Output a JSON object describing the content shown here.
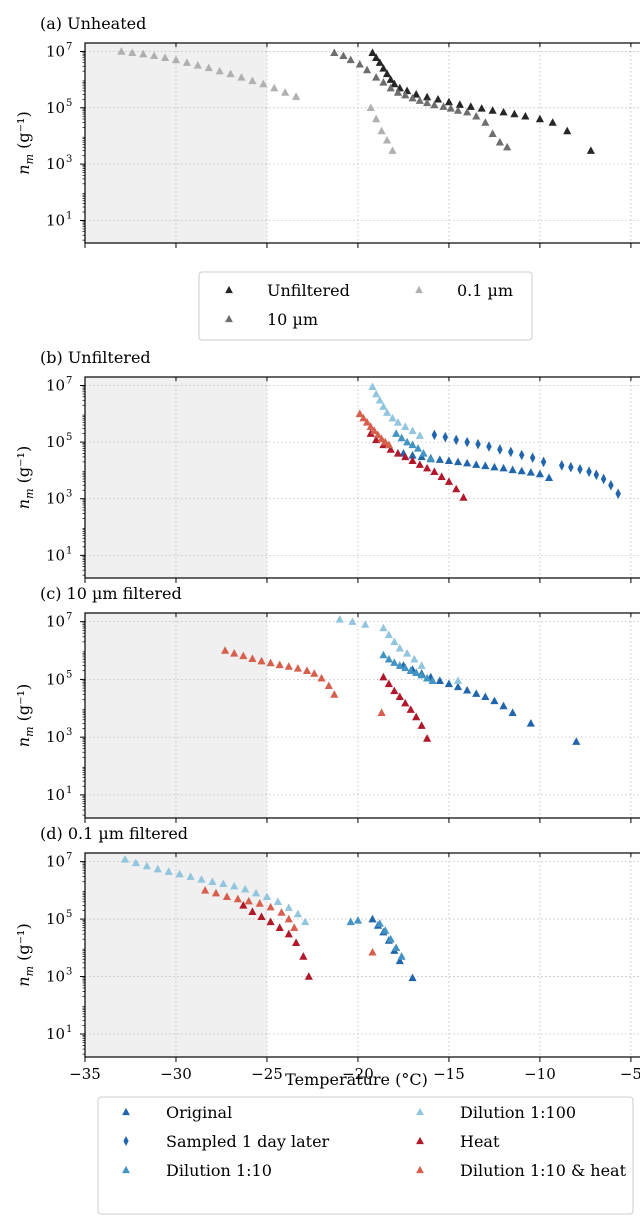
{
  "figure": {
    "xlabel": "Temperature (°C)",
    "ylabel_base": "n",
    "ylabel_sub": "m",
    "ylabel_unit": "(g⁻¹)",
    "xlim": [
      -35,
      -4.5
    ],
    "ylim_log10": [
      0.2,
      7.3
    ],
    "shaded_region": [
      -35,
      -25
    ],
    "grid": true,
    "xticks": [
      -35,
      -30,
      -25,
      -20,
      -15,
      -10,
      -5
    ],
    "xtick_labels": [
      "−35",
      "−30",
      "−25",
      "−20",
      "−15",
      "−10",
      "−5"
    ],
    "yticks_log10": [
      1,
      3,
      5,
      7
    ],
    "ytick_labels": [
      "10",
      "10",
      "10",
      "10"
    ],
    "ytick_exponents": [
      "1",
      "3",
      "5",
      "7"
    ]
  },
  "legend_top": {
    "placement": "between panels a and b",
    "entries": [
      {
        "label": "Unfiltered",
        "color": "#262626",
        "marker": "triangle"
      },
      {
        "label": "10 µm",
        "color": "#6e6e6e",
        "marker": "triangle"
      },
      {
        "label": "0.1 µm",
        "color": "#b0b0b0",
        "marker": "triangle"
      }
    ]
  },
  "legend_bottom": {
    "placement": "bottom",
    "entries": [
      {
        "label": "Original",
        "color": "#2166ac",
        "marker": "triangle"
      },
      {
        "label": "Sampled 1 day later",
        "color": "#2166ac",
        "marker": "diamond"
      },
      {
        "label": "Dilution 1:10",
        "color": "#4393c3",
        "marker": "triangle"
      },
      {
        "label": "Dilution 1:100",
        "color": "#92c5de",
        "marker": "triangle"
      },
      {
        "label": "Heat",
        "color": "#b2182b",
        "marker": "triangle"
      },
      {
        "label": "Dilution 1:10 & heat",
        "color": "#d6604d",
        "marker": "triangle"
      }
    ]
  },
  "chart_data": [
    {
      "type": "scatter",
      "title": "(a) Unheated",
      "x_unit": "°C",
      "series": [
        {
          "name": "Unfiltered",
          "color": "#262626",
          "marker": "triangle",
          "x": [
            -19.2,
            -19.0,
            -18.8,
            -18.6,
            -18.4,
            -18.2,
            -18.0,
            -17.7,
            -17.3,
            -16.8,
            -16.2,
            -15.6,
            -15.0,
            -14.4,
            -13.8,
            -13.2,
            -12.6,
            -12.0,
            -11.4,
            -10.8,
            -10.0,
            -9.3,
            -8.5,
            -7.2
          ],
          "y": [
            9000000,
            6000000,
            4000000,
            2500000,
            1600000,
            1000000,
            700000,
            500000,
            400000,
            300000,
            240000,
            200000,
            160000,
            130000,
            110000,
            95000,
            80000,
            70000,
            60000,
            50000,
            40000,
            30000,
            15000,
            3000
          ]
        },
        {
          "name": "10 µm",
          "color": "#6e6e6e",
          "marker": "triangle",
          "x": [
            -21.3,
            -20.8,
            -20.4,
            -19.9,
            -19.5,
            -19.0,
            -18.6,
            -18.2,
            -17.8,
            -17.4,
            -17.0,
            -16.6,
            -16.2,
            -15.8,
            -15.3,
            -14.9,
            -14.5,
            -14.0,
            -13.5,
            -13.0,
            -12.6,
            -12.2,
            -11.8
          ],
          "y": [
            9000000,
            7000000,
            5000000,
            3500000,
            2200000,
            1200000,
            800000,
            500000,
            350000,
            280000,
            220000,
            180000,
            150000,
            125000,
            110000,
            95000,
            80000,
            70000,
            50000,
            30000,
            12000,
            6000,
            4000
          ]
        },
        {
          "name": "0.1 µm",
          "color": "#b0b0b0",
          "marker": "triangle",
          "x": [
            -33.0,
            -32.4,
            -31.8,
            -31.2,
            -30.6,
            -30.0,
            -29.4,
            -28.8,
            -28.2,
            -27.6,
            -27.0,
            -26.4,
            -25.8,
            -25.2,
            -24.6,
            -24.0,
            -23.4,
            -19.3,
            -19.0,
            -18.7,
            -18.4,
            -18.1
          ],
          "y": [
            10000000,
            9000000,
            8000000,
            7000000,
            6000000,
            5000000,
            4000000,
            3200000,
            2600000,
            2000000,
            1600000,
            1200000,
            900000,
            700000,
            500000,
            350000,
            250000,
            100000,
            40000,
            15000,
            7000,
            3000
          ]
        }
      ]
    },
    {
      "type": "scatter",
      "title": "(b) Unfiltered",
      "x_unit": "°C",
      "series": [
        {
          "name": "Original",
          "color": "#2166ac",
          "marker": "triangle",
          "x": [
            -17.5,
            -17.0,
            -16.5,
            -16.0,
            -15.5,
            -15.0,
            -14.5,
            -14.0,
            -13.5,
            -13.0,
            -12.5,
            -12.0,
            -11.5,
            -11.0,
            -10.5,
            -10.0,
            -9.5
          ],
          "y": [
            40000,
            34000,
            30000,
            27000,
            24000,
            22000,
            20000,
            18000,
            16000,
            14500,
            13000,
            12000,
            10500,
            9500,
            8500,
            7500,
            5500
          ]
        },
        {
          "name": "Sampled 1 day later",
          "color": "#2166ac",
          "marker": "diamond",
          "x": [
            -15.8,
            -15.2,
            -14.6,
            -14.0,
            -13.4,
            -12.8,
            -12.2,
            -11.6,
            -11.0,
            -10.4,
            -9.8,
            -8.8,
            -8.3,
            -7.8,
            -7.3,
            -6.9,
            -6.5,
            -6.1,
            -5.7
          ],
          "y": [
            180000,
            150000,
            120000,
            100000,
            85000,
            70000,
            55000,
            45000,
            35000,
            28000,
            20000,
            15000,
            13000,
            11000,
            9000,
            7000,
            5000,
            3000,
            1500
          ]
        },
        {
          "name": "Dilution 1:10",
          "color": "#4393c3",
          "marker": "triangle",
          "x": [
            -17.9,
            -17.6,
            -17.3,
            -17.0,
            -16.7,
            -16.4,
            -16.0
          ],
          "y": [
            200000,
            140000,
            100000,
            80000,
            60000,
            40000,
            25000
          ]
        },
        {
          "name": "Dilution 1:100",
          "color": "#92c5de",
          "marker": "triangle",
          "x": [
            -19.2,
            -19.0,
            -18.8,
            -18.6,
            -18.4,
            -18.1,
            -17.8,
            -17.4,
            -17.0,
            -16.6
          ],
          "y": [
            9000000,
            5000000,
            3000000,
            1800000,
            1100000,
            700000,
            500000,
            350000,
            250000,
            170000
          ]
        },
        {
          "name": "Heat",
          "color": "#b2182b",
          "marker": "triangle",
          "x": [
            -19.3,
            -19.0,
            -18.6,
            -18.2,
            -17.8,
            -17.4,
            -17.0,
            -16.6,
            -16.2,
            -15.8,
            -15.4,
            -15.0,
            -14.6,
            -14.2
          ],
          "y": [
            200000,
            120000,
            80000,
            55000,
            40000,
            30000,
            22000,
            16000,
            12000,
            9000,
            6000,
            4000,
            2200,
            1100
          ]
        },
        {
          "name": "Dilution 1:10 & heat",
          "color": "#d6604d",
          "marker": "triangle",
          "x": [
            -19.9,
            -19.7,
            -19.5,
            -19.3,
            -19.1,
            -18.9,
            -18.7,
            -18.5,
            -18.3
          ],
          "y": [
            1000000,
            700000,
            500000,
            350000,
            250000,
            180000,
            130000,
            100000,
            80000
          ]
        }
      ]
    },
    {
      "type": "scatter",
      "title": "(c) 10 µm filtered",
      "x_unit": "°C",
      "series": [
        {
          "name": "Original",
          "color": "#2166ac",
          "marker": "triangle",
          "x": [
            -17.5,
            -17.0,
            -16.5,
            -16.0,
            -15.5,
            -15.0,
            -14.5,
            -14.0,
            -13.5,
            -13.0,
            -12.5,
            -12.0,
            -11.5,
            -10.5,
            -8.0
          ],
          "y": [
            300000,
            220000,
            160000,
            120000,
            90000,
            70000,
            55000,
            42000,
            32000,
            25000,
            18000,
            12000,
            7000,
            3000,
            700
          ]
        },
        {
          "name": "Dilution 1:10",
          "color": "#4393c3",
          "marker": "triangle",
          "x": [
            -18.6,
            -18.3,
            -18.0,
            -17.7,
            -17.4,
            -17.1,
            -16.8,
            -16.5,
            -16.2,
            -15.9
          ],
          "y": [
            700000,
            500000,
            380000,
            300000,
            250000,
            200000,
            170000,
            140000,
            110000,
            90000
          ]
        },
        {
          "name": "Dilution 1:100",
          "color": "#92c5de",
          "marker": "triangle",
          "x": [
            -21.0,
            -20.3,
            -19.6,
            -18.6,
            -18.3,
            -18.0,
            -17.7,
            -17.3,
            -16.9,
            -16.5,
            -14.5
          ],
          "y": [
            12000000,
            10000000,
            8000000,
            6000000,
            3500000,
            2000000,
            1200000,
            800000,
            500000,
            300000,
            90000
          ]
        },
        {
          "name": "Heat",
          "color": "#b2182b",
          "marker": "triangle",
          "x": [
            -18.6,
            -18.3,
            -18.0,
            -17.7,
            -17.4,
            -17.1,
            -16.8,
            -16.5,
            -16.2
          ],
          "y": [
            120000,
            70000,
            40000,
            25000,
            15000,
            9000,
            5000,
            2500,
            900
          ]
        },
        {
          "name": "Dilution 1:10 & heat",
          "color": "#d6604d",
          "marker": "triangle",
          "x": [
            -27.3,
            -26.8,
            -26.3,
            -25.8,
            -25.3,
            -24.8,
            -24.3,
            -23.8,
            -23.3,
            -22.8,
            -22.4,
            -22.0,
            -21.6,
            -21.3,
            -18.7
          ],
          "y": [
            1000000,
            800000,
            650000,
            520000,
            430000,
            370000,
            320000,
            280000,
            240000,
            200000,
            160000,
            110000,
            60000,
            30000,
            7000
          ]
        }
      ]
    },
    {
      "type": "scatter",
      "title": "(d) 0.1 µm filtered",
      "x_unit": "°C",
      "series": [
        {
          "name": "Original",
          "color": "#2166ac",
          "marker": "triangle",
          "x": [
            -19.2,
            -18.9,
            -18.6,
            -18.3,
            -18.0,
            -17.7,
            -17.0
          ],
          "y": [
            100000,
            60000,
            35000,
            18000,
            8000,
            3500,
            900
          ]
        },
        {
          "name": "Dilution 1:10",
          "color": "#4393c3",
          "marker": "triangle",
          "x": [
            -18.8,
            -18.5,
            -18.2,
            -17.9,
            -17.6,
            -20.4,
            -20.0
          ],
          "y": [
            70000,
            40000,
            20000,
            10000,
            5000,
            80000,
            90000
          ]
        },
        {
          "name": "Dilution 1:100",
          "color": "#92c5de",
          "marker": "triangle",
          "x": [
            -32.8,
            -32.2,
            -31.6,
            -31.0,
            -30.4,
            -29.8,
            -29.2,
            -28.6,
            -28.0,
            -27.4,
            -26.8,
            -26.2,
            -25.6,
            -25.0,
            -24.4,
            -23.8,
            -23.3,
            -22.9
          ],
          "y": [
            12000000,
            9000000,
            7000000,
            5500000,
            4500000,
            3700000,
            3000000,
            2400000,
            2000000,
            1700000,
            1400000,
            1100000,
            800000,
            600000,
            400000,
            250000,
            150000,
            80000
          ]
        },
        {
          "name": "Heat",
          "color": "#b2182b",
          "marker": "triangle",
          "x": [
            -26.3,
            -25.8,
            -25.3,
            -24.8,
            -24.3,
            -23.8,
            -23.4,
            -23.0,
            -22.7
          ],
          "y": [
            300000,
            180000,
            120000,
            80000,
            50000,
            30000,
            15000,
            5000,
            1000
          ]
        },
        {
          "name": "Dilution 1:10 & heat",
          "color": "#d6604d",
          "marker": "triangle",
          "x": [
            -28.4,
            -27.8,
            -27.2,
            -26.6,
            -26.0,
            -25.4,
            -24.8,
            -24.2,
            -23.8,
            -23.5,
            -19.2
          ],
          "y": [
            1000000,
            800000,
            600000,
            500000,
            420000,
            350000,
            260000,
            170000,
            100000,
            50000,
            7000
          ]
        }
      ]
    }
  ]
}
